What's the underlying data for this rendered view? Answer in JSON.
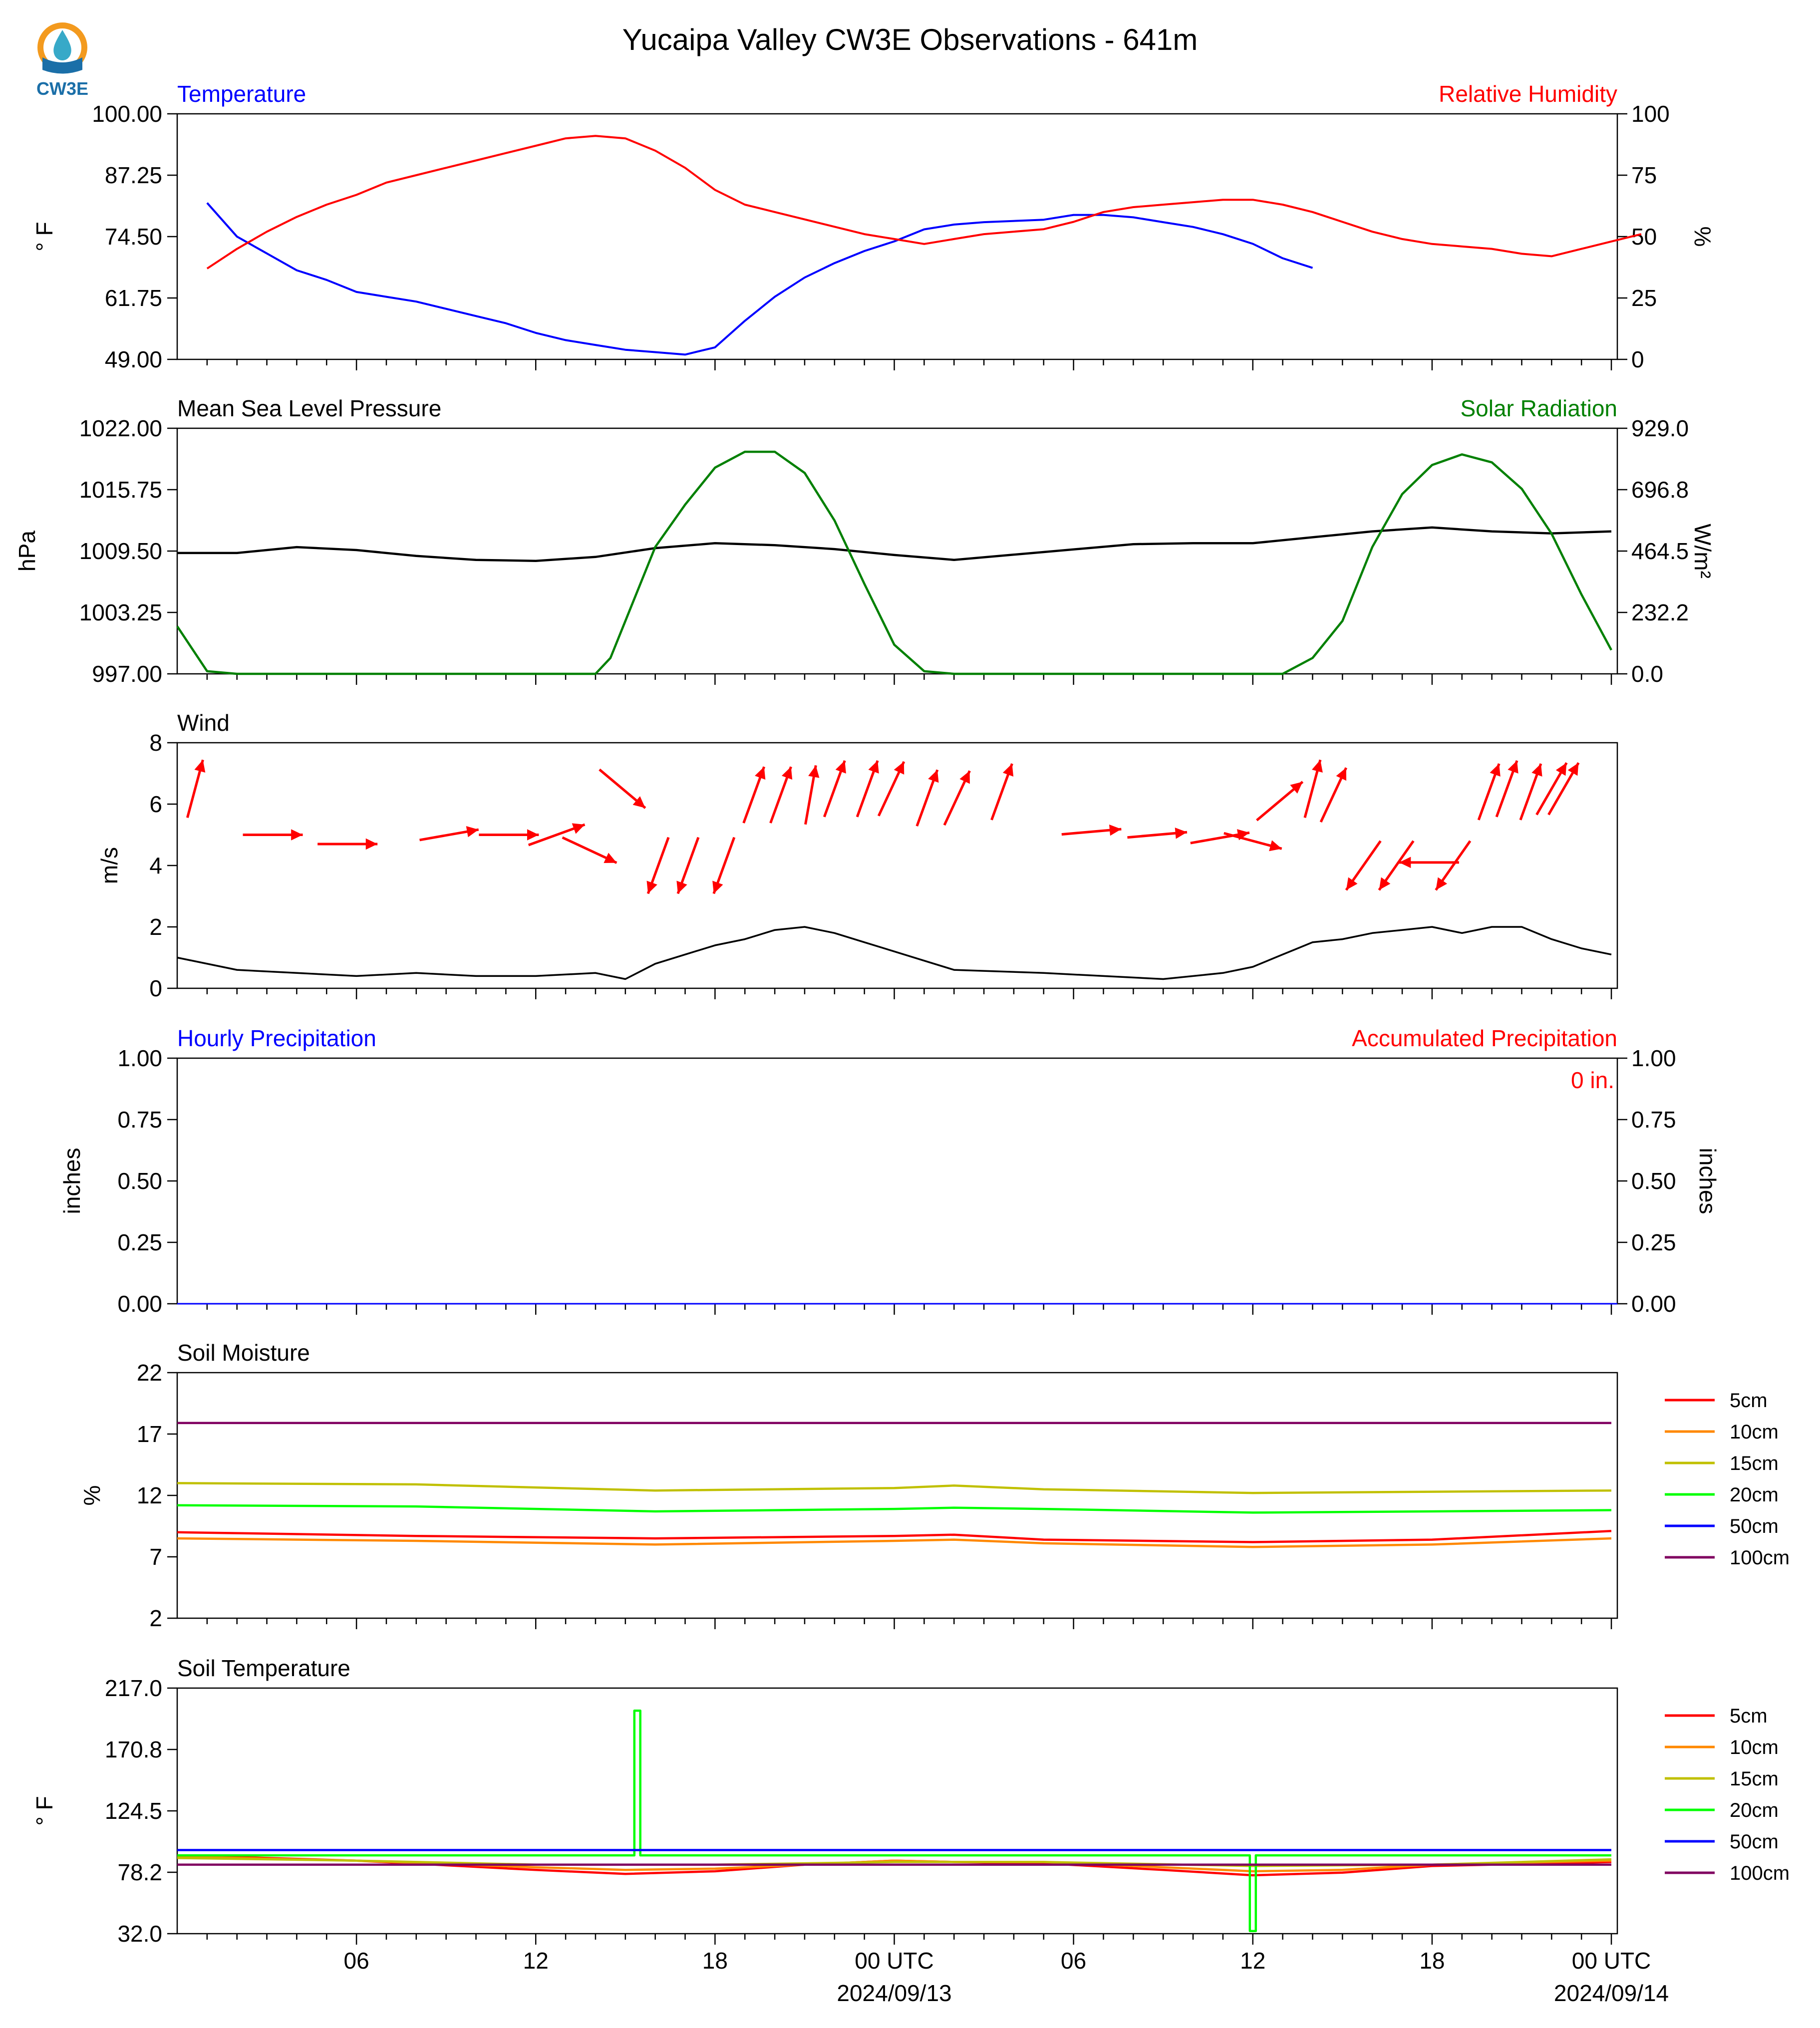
{
  "title": "Yucaipa Valley CW3E Observations - 641m",
  "logo": {
    "text": "CW3E",
    "icon": "cw3e-water-drop-icon",
    "colors": [
      "#f39a1e",
      "#1b6fa8",
      "#37a9c8"
    ]
  },
  "x_axis": {
    "hour_ticks": [
      "06",
      "12",
      "18",
      "00 UTC",
      "06",
      "12",
      "18",
      "00 UTC"
    ],
    "date_labels": [
      "2024/09/13",
      "2024/09/14"
    ]
  },
  "colors": {
    "temperature": "#0000ff",
    "humidity": "#ff0000",
    "pressure": "#000000",
    "solar": "#008000",
    "wind_arrow": "#ff0000",
    "wind_speed": "#000000",
    "hourly_precip": "#0000ff",
    "accum_precip": "#ff0000"
  },
  "chart_data": [
    {
      "id": "temp_rh",
      "type": "line",
      "left_label": "Temperature",
      "right_label": "Relative Humidity",
      "ylabel_left": "° F",
      "ylabel_right": "%",
      "yticks_left": [
        "100.00",
        "87.25",
        "74.50",
        "61.75",
        "49.00"
      ],
      "yticks_right": [
        "100",
        "75",
        "50",
        "25",
        "0"
      ],
      "ylim_left": [
        49,
        100
      ],
      "ylim_right": [
        0,
        100
      ],
      "x_hours": [
        1,
        2,
        3,
        4,
        5,
        6,
        7,
        8,
        9,
        10,
        11,
        12,
        13,
        14,
        15,
        16,
        17,
        18,
        19,
        20,
        21,
        22,
        23,
        24,
        25,
        26,
        27,
        29,
        30,
        31,
        32,
        33,
        34,
        35,
        36,
        37,
        38,
        39,
        40,
        41,
        42,
        43,
        44,
        45,
        46,
        47,
        48,
        49
      ],
      "series": [
        {
          "name": "Temperature",
          "color": "#0000ff",
          "values": [
            81.5,
            74.5,
            71,
            67.5,
            65.5,
            63,
            62,
            61,
            59.5,
            58,
            56.5,
            54.5,
            53,
            52,
            51,
            50.5,
            50,
            51.5,
            57,
            62,
            66,
            69,
            71.5,
            73.5,
            76,
            77,
            77.5,
            78,
            79,
            79,
            78.5,
            77.5,
            76.5,
            75,
            73,
            70,
            68,
            null,
            null,
            null,
            null,
            null,
            null,
            null,
            null,
            null,
            null,
            null
          ]
        },
        {
          "name": "Relative Humidity",
          "color": "#ff0000",
          "values": [
            37,
            45,
            52,
            58,
            63,
            67,
            72,
            75,
            78,
            81,
            84,
            87,
            90,
            91,
            90,
            85,
            78,
            69,
            63,
            60,
            57,
            54,
            51,
            49,
            47,
            49,
            51,
            53,
            56,
            60,
            62,
            63,
            64,
            65,
            65,
            63,
            60,
            56,
            52,
            49,
            47,
            46,
            45,
            43,
            42,
            45,
            48,
            51
          ]
        }
      ]
    },
    {
      "id": "pressure_solar",
      "type": "line",
      "left_label": "Mean Sea Level Pressure",
      "right_label": "Solar Radiation",
      "ylabel_left": "hPa",
      "ylabel_right": "W/m²",
      "yticks_left": [
        "1022.00",
        "1015.75",
        "1009.50",
        "1003.25",
        "997.00"
      ],
      "yticks_right": [
        "929.0",
        "696.8",
        "464.5",
        "232.2",
        "0.0"
      ],
      "ylim_left": [
        997,
        1022
      ],
      "ylim_right": [
        0,
        929
      ],
      "series": [
        {
          "name": "Mean Sea Level Pressure",
          "color": "#000000",
          "x_hours": [
            0,
            2,
            4,
            6,
            8,
            10,
            12,
            14,
            16,
            18,
            20,
            22,
            24,
            26,
            29,
            32,
            34,
            36,
            38,
            40,
            42,
            44,
            46,
            48
          ],
          "values": [
            1009.3,
            1009.3,
            1009.9,
            1009.6,
            1009.0,
            1008.6,
            1008.5,
            1008.9,
            1009.8,
            1010.3,
            1010.1,
            1009.7,
            1009.1,
            1008.6,
            1009.4,
            1010.2,
            1010.3,
            1010.3,
            1010.9,
            1011.5,
            1011.9,
            1011.5,
            1011.3,
            1011.5
          ]
        },
        {
          "name": "Solar Radiation",
          "color": "#008000",
          "x_hours": [
            0,
            1,
            2,
            3,
            4,
            5,
            6,
            7,
            8,
            9,
            10,
            11,
            12,
            13,
            14,
            14.5,
            15,
            16,
            17,
            18,
            19,
            20,
            21,
            22,
            23,
            24,
            25,
            26,
            29,
            30,
            31,
            32,
            33,
            34,
            35,
            36,
            37,
            38,
            39,
            40,
            41,
            42,
            43,
            44,
            45,
            46,
            47,
            48
          ],
          "values": [
            180,
            10,
            0,
            0,
            0,
            0,
            0,
            0,
            0,
            0,
            0,
            0,
            0,
            0,
            0,
            60,
            200,
            480,
            640,
            780,
            840,
            840,
            760,
            580,
            340,
            110,
            10,
            0,
            0,
            0,
            0,
            0,
            0,
            0,
            0,
            0,
            0,
            60,
            200,
            480,
            680,
            790,
            830,
            800,
            700,
            530,
            300,
            90
          ]
        }
      ]
    },
    {
      "id": "wind",
      "type": "line",
      "left_label": "Wind",
      "ylabel_left": "m/s",
      "yticks_left": [
        "8",
        "6",
        "4",
        "2",
        "0"
      ],
      "ylim_left": [
        0,
        8
      ],
      "series": [
        {
          "name": "Wind",
          "color": "#000000",
          "x_hours": [
            0,
            2,
            4,
            6,
            8,
            10,
            12,
            14,
            15,
            16,
            17,
            18,
            19,
            20,
            21,
            22,
            23,
            24,
            25,
            26,
            29,
            31,
            33,
            35,
            36,
            37,
            38,
            39,
            40,
            41,
            42,
            43,
            44,
            45,
            46,
            47,
            48
          ],
          "values": [
            1.0,
            0.6,
            0.5,
            0.4,
            0.5,
            0.4,
            0.4,
            0.5,
            0.3,
            0.8,
            1.1,
            1.4,
            1.6,
            1.9,
            2.0,
            1.8,
            1.5,
            1.2,
            0.9,
            0.6,
            0.5,
            0.4,
            0.3,
            0.5,
            0.7,
            1.1,
            1.5,
            1.6,
            1.8,
            1.9,
            2.0,
            1.8,
            2.0,
            2.0,
            1.6,
            1.3,
            1.1
          ]
        },
        {
          "name": "Wind Direction",
          "color": "#ff0000",
          "x_hours": [
            0.6,
            3.2,
            5.7,
            9.1,
            11.1,
            12.7,
            13.8,
            14.9,
            16.1,
            17.1,
            18.3,
            19.3,
            20.2,
            21.2,
            22.0,
            23.1,
            23.9,
            25.1,
            26.1,
            27.6,
            30.6,
            32.8,
            34.9,
            36.0,
            36.9,
            38.0,
            38.7,
            39.7,
            40.8,
            41.9,
            42.7,
            43.9,
            44.5,
            45.3,
            46.0,
            46.4
          ],
          "speeds": [
            6.5,
            5.0,
            4.7,
            5.0,
            5.0,
            5.0,
            4.5,
            6.5,
            4.0,
            4.0,
            4.0,
            6.3,
            6.3,
            6.3,
            6.5,
            6.5,
            6.5,
            6.2,
            6.2,
            6.4,
            5.1,
            5.0,
            4.9,
            4.8,
            6.1,
            6.5,
            6.3,
            4.0,
            4.0,
            4.1,
            4.0,
            6.4,
            6.5,
            6.4,
            6.5,
            6.5
          ]
        }
      ]
    },
    {
      "id": "precip",
      "type": "line",
      "left_label": "Hourly Precipitation",
      "right_label": "Accumulated Precipitation",
      "ylabel_left": "inches",
      "ylabel_right": "inches",
      "yticks_left": [
        "1.00",
        "0.75",
        "0.50",
        "0.25",
        "0.00"
      ],
      "yticks_right": [
        "1.00",
        "0.75",
        "0.50",
        "0.25",
        "0.00"
      ],
      "ylim_left": [
        0,
        1
      ],
      "ylim_right": [
        0,
        1
      ],
      "annotation": "0 in.",
      "series": [
        {
          "name": "Hourly Precipitation",
          "color": "#0000ff",
          "x_hours": [
            0,
            48.2
          ],
          "values": [
            0,
            0
          ]
        }
      ]
    },
    {
      "id": "soil_moisture",
      "type": "line",
      "left_label": "Soil Moisture",
      "ylabel_left": "%",
      "yticks_left": [
        "22",
        "17",
        "12",
        "7",
        "2"
      ],
      "ylim_left": [
        2,
        22
      ],
      "legend": [
        "5cm",
        "10cm",
        "15cm",
        "20cm",
        "50cm",
        "100cm"
      ],
      "series": [
        {
          "name": "5cm",
          "color": "#ff0000",
          "x_hours": [
            0,
            8,
            16,
            24,
            26,
            29,
            36,
            42,
            48
          ],
          "values": [
            9.0,
            8.7,
            8.5,
            8.7,
            8.8,
            8.4,
            8.2,
            8.4,
            9.1
          ]
        },
        {
          "name": "10cm",
          "color": "#ff8800",
          "x_hours": [
            0,
            8,
            16,
            24,
            26,
            29,
            36,
            42,
            48
          ],
          "values": [
            8.5,
            8.3,
            8.0,
            8.3,
            8.4,
            8.1,
            7.8,
            8.0,
            8.5
          ]
        },
        {
          "name": "15cm",
          "color": "#c0c000",
          "x_hours": [
            0,
            8,
            16,
            24,
            26,
            29,
            36,
            42,
            48
          ],
          "values": [
            13.0,
            12.9,
            12.4,
            12.6,
            12.8,
            12.5,
            12.2,
            12.3,
            12.4
          ]
        },
        {
          "name": "20cm",
          "color": "#00ff00",
          "x_hours": [
            0,
            8,
            16,
            24,
            26,
            29,
            36,
            42,
            48
          ],
          "values": [
            11.2,
            11.1,
            10.7,
            10.9,
            11.0,
            10.9,
            10.6,
            10.7,
            10.8
          ]
        },
        {
          "name": "50cm",
          "color": "#0000ff",
          "x_hours": [],
          "values": []
        },
        {
          "name": "100cm",
          "color": "#800060",
          "x_hours": [
            0,
            26,
            29,
            48
          ],
          "values": [
            17.9,
            17.9,
            17.9,
            17.9
          ]
        }
      ]
    },
    {
      "id": "soil_temperature",
      "type": "line",
      "left_label": "Soil Temperature",
      "ylabel_left": "° F",
      "yticks_left": [
        "217.0",
        "170.8",
        "124.5",
        "78.2",
        "32.0"
      ],
      "ylim_left": [
        32,
        217
      ],
      "legend": [
        "5cm",
        "10cm",
        "15cm",
        "20cm",
        "50cm",
        "100cm"
      ],
      "series": [
        {
          "name": "5cm",
          "color": "#ff0000",
          "x_hours": [
            0,
            6,
            12,
            15,
            18,
            21,
            24,
            26,
            29,
            33,
            36,
            39,
            42,
            48
          ],
          "values": [
            91,
            87,
            80,
            77,
            79,
            84,
            87,
            86,
            85,
            80,
            76,
            78,
            83,
            86
          ]
        },
        {
          "name": "10cm",
          "color": "#ff8800",
          "x_hours": [
            0,
            6,
            12,
            15,
            18,
            21,
            24,
            26,
            29,
            33,
            36,
            39,
            42,
            48
          ],
          "values": [
            90,
            87,
            82,
            80,
            81,
            84,
            87,
            86,
            86,
            82,
            79,
            80,
            84,
            87
          ]
        },
        {
          "name": "15cm",
          "color": "#c0c000",
          "x_hours": [
            0,
            6,
            12,
            18,
            24,
            26,
            29,
            36,
            42,
            48
          ],
          "values": [
            89,
            87,
            84,
            84,
            86,
            86,
            86,
            83,
            84,
            88
          ]
        },
        {
          "name": "20cm",
          "color": "#00ff00",
          "x_hours": [
            0,
            15.3,
            15.3,
            15.5,
            15.5,
            26,
            29,
            35.9,
            35.9,
            36.1,
            36.1,
            48
          ],
          "values": [
            91,
            91,
            200,
            200,
            91,
            91,
            91,
            91,
            34,
            34,
            91,
            91
          ]
        },
        {
          "name": "50cm",
          "color": "#0000ff",
          "x_hours": [
            0,
            26,
            29,
            48
          ],
          "values": [
            95,
            95,
            95,
            95
          ]
        },
        {
          "name": "100cm",
          "color": "#800060",
          "x_hours": [
            0,
            26,
            29,
            48
          ],
          "values": [
            84,
            84,
            84,
            84
          ]
        }
      ]
    }
  ]
}
